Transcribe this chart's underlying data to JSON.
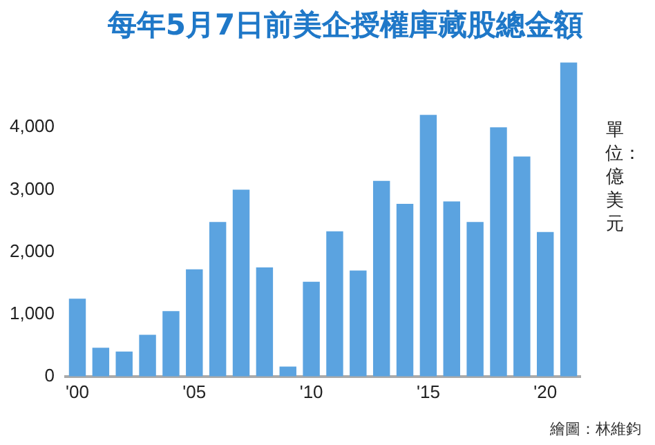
{
  "chart_data": {
    "type": "bar",
    "title": "每年5月7日前美企授權庫藏股總金額",
    "ylabel": "單位：億美元",
    "categories": [
      "'00",
      null,
      null,
      null,
      null,
      "'05",
      null,
      null,
      null,
      null,
      "'10",
      null,
      null,
      null,
      null,
      "'15",
      null,
      null,
      null,
      null,
      "'20",
      null
    ],
    "values": [
      1250,
      460,
      400,
      670,
      1050,
      1720,
      2480,
      3000,
      1750,
      160,
      1520,
      2330,
      1700,
      3140,
      2770,
      4200,
      2810,
      2480,
      4000,
      3530,
      2320,
      5040
    ],
    "color": "#5ba3e0",
    "ylim": [
      0,
      5050
    ],
    "yticks": [
      0,
      {
        "value": 1000,
        "label": "1,000"
      },
      {
        "value": 2000,
        "label": "2,000"
      },
      {
        "value": 3000,
        "label": "3,000"
      },
      {
        "value": 4000,
        "label": "4,000"
      }
    ],
    "grid": false,
    "annotations": [
      "繪圖：林維鈞"
    ]
  }
}
